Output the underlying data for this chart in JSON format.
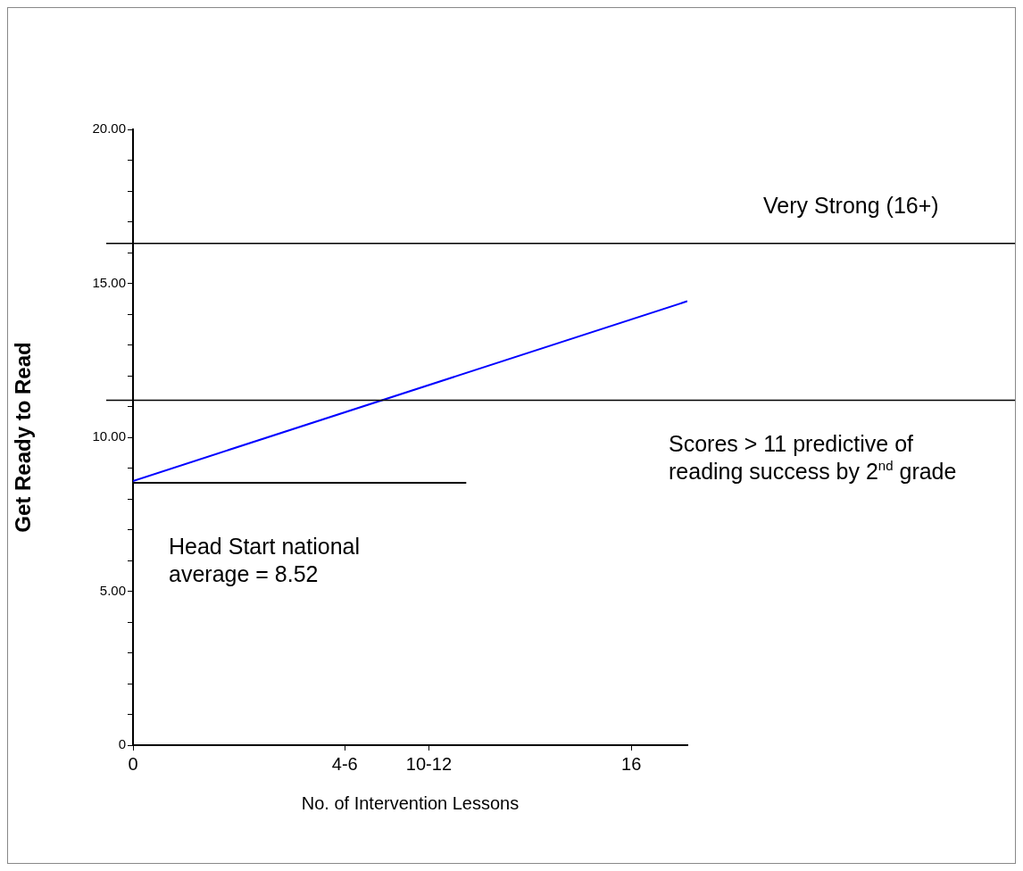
{
  "chart_data": {
    "type": "line",
    "xlabel": "No. of Intervention Lessons",
    "ylabel": "Get Ready to Read",
    "xlim": [
      0,
      17.8
    ],
    "xticks": [
      0,
      {
        "value": 6.8,
        "label": "4-6"
      },
      {
        "value": 9.5,
        "label": "10-12"
      },
      16
    ],
    "ylim": [
      0,
      20
    ],
    "yticks": [
      {
        "value": 0,
        "label": "0"
      },
      {
        "value": 1,
        "label": null
      },
      {
        "value": 2,
        "label": null
      },
      {
        "value": 3,
        "label": null
      },
      {
        "value": 4,
        "label": null
      },
      {
        "value": 5,
        "label": "5.00"
      },
      {
        "value": 6,
        "label": null
      },
      {
        "value": 7,
        "label": null
      },
      {
        "value": 8,
        "label": null
      },
      {
        "value": 9,
        "label": null
      },
      {
        "value": 10,
        "label": "10.00"
      },
      {
        "value": 11,
        "label": null
      },
      {
        "value": 12,
        "label": null
      },
      {
        "value": 13,
        "label": null
      },
      {
        "value": 14,
        "label": null
      },
      {
        "value": 15,
        "label": "15.00"
      },
      {
        "value": 16,
        "label": null
      },
      {
        "value": 17,
        "label": null
      },
      {
        "value": 18,
        "label": null
      },
      {
        "value": 19,
        "label": null
      },
      {
        "value": 20,
        "label": "20.00"
      }
    ],
    "series": [
      {
        "color": "#0000ff",
        "x": [
          0,
          17.8
        ],
        "values": [
          8.58,
          14.42
        ]
      },
      {
        "color": "#000000",
        "x": [
          0,
          10.7
        ],
        "values": [
          8.52,
          8.52
        ]
      }
    ],
    "ref_lines": [
      {
        "axis": "y",
        "value": 16.3,
        "color": "#000000"
      },
      {
        "axis": "y",
        "value": 11.2,
        "color": "#000000"
      }
    ],
    "annotations": [
      "Very Strong (16+)",
      "Scores > 11 predictive of reading success by 2$^{nd}$ grade",
      "Head Start national average = 8.52"
    ],
    "grid": false,
    "legend": false
  }
}
